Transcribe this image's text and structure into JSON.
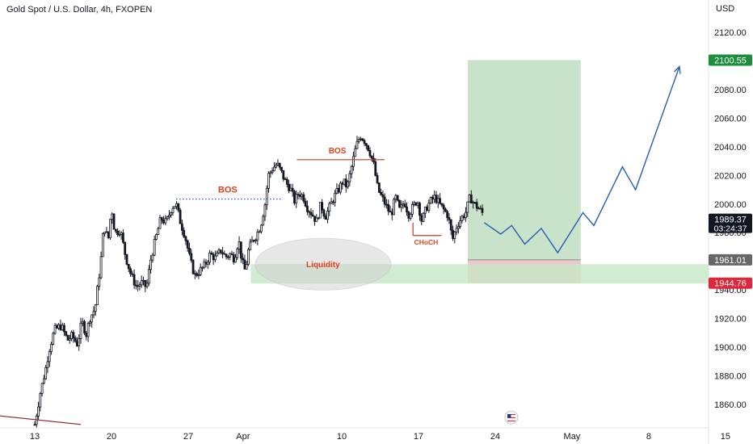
{
  "header": {
    "title": "Gold Spot / U.S. Dollar, 4h, FXOPEN",
    "currency": "USD"
  },
  "chart_data": {
    "type": "candlestick",
    "symbol": "Gold Spot / U.S. Dollar",
    "interval": "4h",
    "source": "FXOPEN",
    "ylim": [
      1845,
      2143
    ],
    "y_ticks": [
      1860,
      1880,
      1900,
      1920,
      1940,
      1960,
      1980,
      2000,
      2020,
      2040,
      2060,
      2080,
      2100,
      2120
    ],
    "y_tick_labels": [
      "1860.00",
      "1880.00",
      "1900.00",
      "1920.00",
      "1940.00",
      "1960.00",
      "1980.00",
      "2000.00",
      "2020.00",
      "2040.00",
      "2060.00",
      "2080.00",
      "2100.00",
      "2120.00"
    ],
    "x_ticks": [
      {
        "label": "13",
        "day": 0
      },
      {
        "label": "20",
        "day": 7
      },
      {
        "label": "27",
        "day": 14
      },
      {
        "label": "Apr",
        "day": 19
      },
      {
        "label": "10",
        "day": 28
      },
      {
        "label": "17",
        "day": 35
      },
      {
        "label": "24",
        "day": 42
      },
      {
        "label": "May",
        "day": 49
      },
      {
        "label": "8",
        "day": 56
      },
      {
        "label": "15",
        "day": 63
      }
    ],
    "price_path": [
      [
        0.0,
        1846
      ],
      [
        0.5,
        1868
      ],
      [
        1.0,
        1885
      ],
      [
        1.3,
        1898
      ],
      [
        1.8,
        1912
      ],
      [
        2.4,
        1915
      ],
      [
        3.0,
        1905
      ],
      [
        3.4,
        1908
      ],
      [
        3.9,
        1902
      ],
      [
        4.3,
        1918
      ],
      [
        4.7,
        1909
      ],
      [
        5.0,
        1920
      ],
      [
        5.5,
        1927
      ],
      [
        6.0,
        1958
      ],
      [
        6.3,
        1985
      ],
      [
        6.7,
        1975
      ],
      [
        7.0,
        1998
      ],
      [
        7.3,
        1980
      ],
      [
        7.8,
        1982
      ],
      [
        8.3,
        1963
      ],
      [
        8.8,
        1950
      ],
      [
        9.3,
        1942
      ],
      [
        9.7,
        1945
      ],
      [
        10.2,
        1942
      ],
      [
        10.6,
        1962
      ],
      [
        11.0,
        1975
      ],
      [
        11.5,
        1990
      ],
      [
        12.0,
        1987
      ],
      [
        12.5,
        1998
      ],
      [
        12.9,
        2000
      ],
      [
        13.3,
        1987
      ],
      [
        13.7,
        1978
      ],
      [
        14.2,
        1960
      ],
      [
        14.6,
        1950
      ],
      [
        15.0,
        1953
      ],
      [
        15.5,
        1957
      ],
      [
        16.0,
        1965
      ],
      [
        16.5,
        1962
      ],
      [
        17.0,
        1968
      ],
      [
        17.4,
        1963
      ],
      [
        17.8,
        1965
      ],
      [
        18.2,
        1962
      ],
      [
        18.6,
        1975
      ],
      [
        18.9,
        1960
      ],
      [
        19.2,
        1953
      ],
      [
        19.5,
        1968
      ],
      [
        19.9,
        1975
      ],
      [
        20.2,
        1978
      ],
      [
        20.6,
        1985
      ],
      [
        21.0,
        2000
      ],
      [
        21.3,
        2020
      ],
      [
        21.7,
        2025
      ],
      [
        22.1,
        2028
      ],
      [
        22.5,
        2022
      ],
      [
        22.9,
        2015
      ],
      [
        23.3,
        2011
      ],
      [
        23.7,
        2002
      ],
      [
        24.1,
        2008
      ],
      [
        24.5,
        2005
      ],
      [
        24.9,
        1997
      ],
      [
        25.3,
        1993
      ],
      [
        25.7,
        1988
      ],
      [
        26.1,
        2000
      ],
      [
        26.5,
        1991
      ],
      [
        26.9,
        1998
      ],
      [
        27.3,
        2005
      ],
      [
        27.7,
        2010
      ],
      [
        28.1,
        2016
      ],
      [
        28.5,
        2012
      ],
      [
        28.9,
        2026
      ],
      [
        29.3,
        2040
      ],
      [
        29.7,
        2048
      ],
      [
        30.1,
        2044
      ],
      [
        30.5,
        2038
      ],
      [
        30.9,
        2028
      ],
      [
        31.3,
        2010
      ],
      [
        31.7,
        2004
      ],
      [
        32.1,
        1998
      ],
      [
        32.5,
        1992
      ],
      [
        32.9,
        2005
      ],
      [
        33.3,
        1995
      ],
      [
        33.7,
        2002
      ],
      [
        34.1,
        1993
      ],
      [
        34.5,
        1998
      ],
      [
        34.9,
        2003
      ],
      [
        35.3,
        1988
      ],
      [
        35.7,
        1997
      ],
      [
        36.1,
        2002
      ],
      [
        36.5,
        2005
      ],
      [
        36.9,
        2000
      ],
      [
        37.3,
        1996
      ],
      [
        37.7,
        1992
      ],
      [
        38.1,
        1975
      ],
      [
        38.5,
        1985
      ],
      [
        38.9,
        1990
      ],
      [
        39.3,
        1994
      ],
      [
        39.7,
        2005
      ],
      [
        40.1,
        2000
      ],
      [
        40.5,
        1997
      ],
      [
        40.9,
        1993
      ]
    ],
    "current_price": 1989.37,
    "countdown": "03:24:37",
    "levels": {
      "take_profit": 2100.55,
      "entry": 1961.01,
      "stop_loss": 1944.76
    },
    "projection": [
      [
        41.0,
        1987
      ],
      [
        42.5,
        1979
      ],
      [
        43.5,
        1985
      ],
      [
        44.7,
        1972
      ],
      [
        46.2,
        1983
      ],
      [
        47.7,
        1966
      ],
      [
        50.0,
        1994
      ],
      [
        51.0,
        1985
      ],
      [
        53.6,
        2026
      ],
      [
        54.8,
        2010
      ],
      [
        58.8,
        2096
      ]
    ],
    "annotations": {
      "bos_1": "BOS",
      "bos_2": "BOS",
      "choch": "CHoCH",
      "liquidity": "Liquidity"
    },
    "colors": {
      "candle_up": "#131722",
      "candle_down": "#131722",
      "projection_line": "#2A5BB5",
      "bos_line": "#C0392B",
      "bos_dotted": "#2962FF",
      "label_red": "#E0401A",
      "tp_zone": "#B7D9B8",
      "sl_zone": "#E8B4B8",
      "liquidity_zone": "#C5E7C5",
      "liquidity_ellipse": "#D4D4D4",
      "tp_badge": "#1B8F3C",
      "sl_badge": "#E0263A",
      "entry_badge": "#676767",
      "price_badge": "#131722",
      "trend_line": "#8E2020"
    }
  }
}
